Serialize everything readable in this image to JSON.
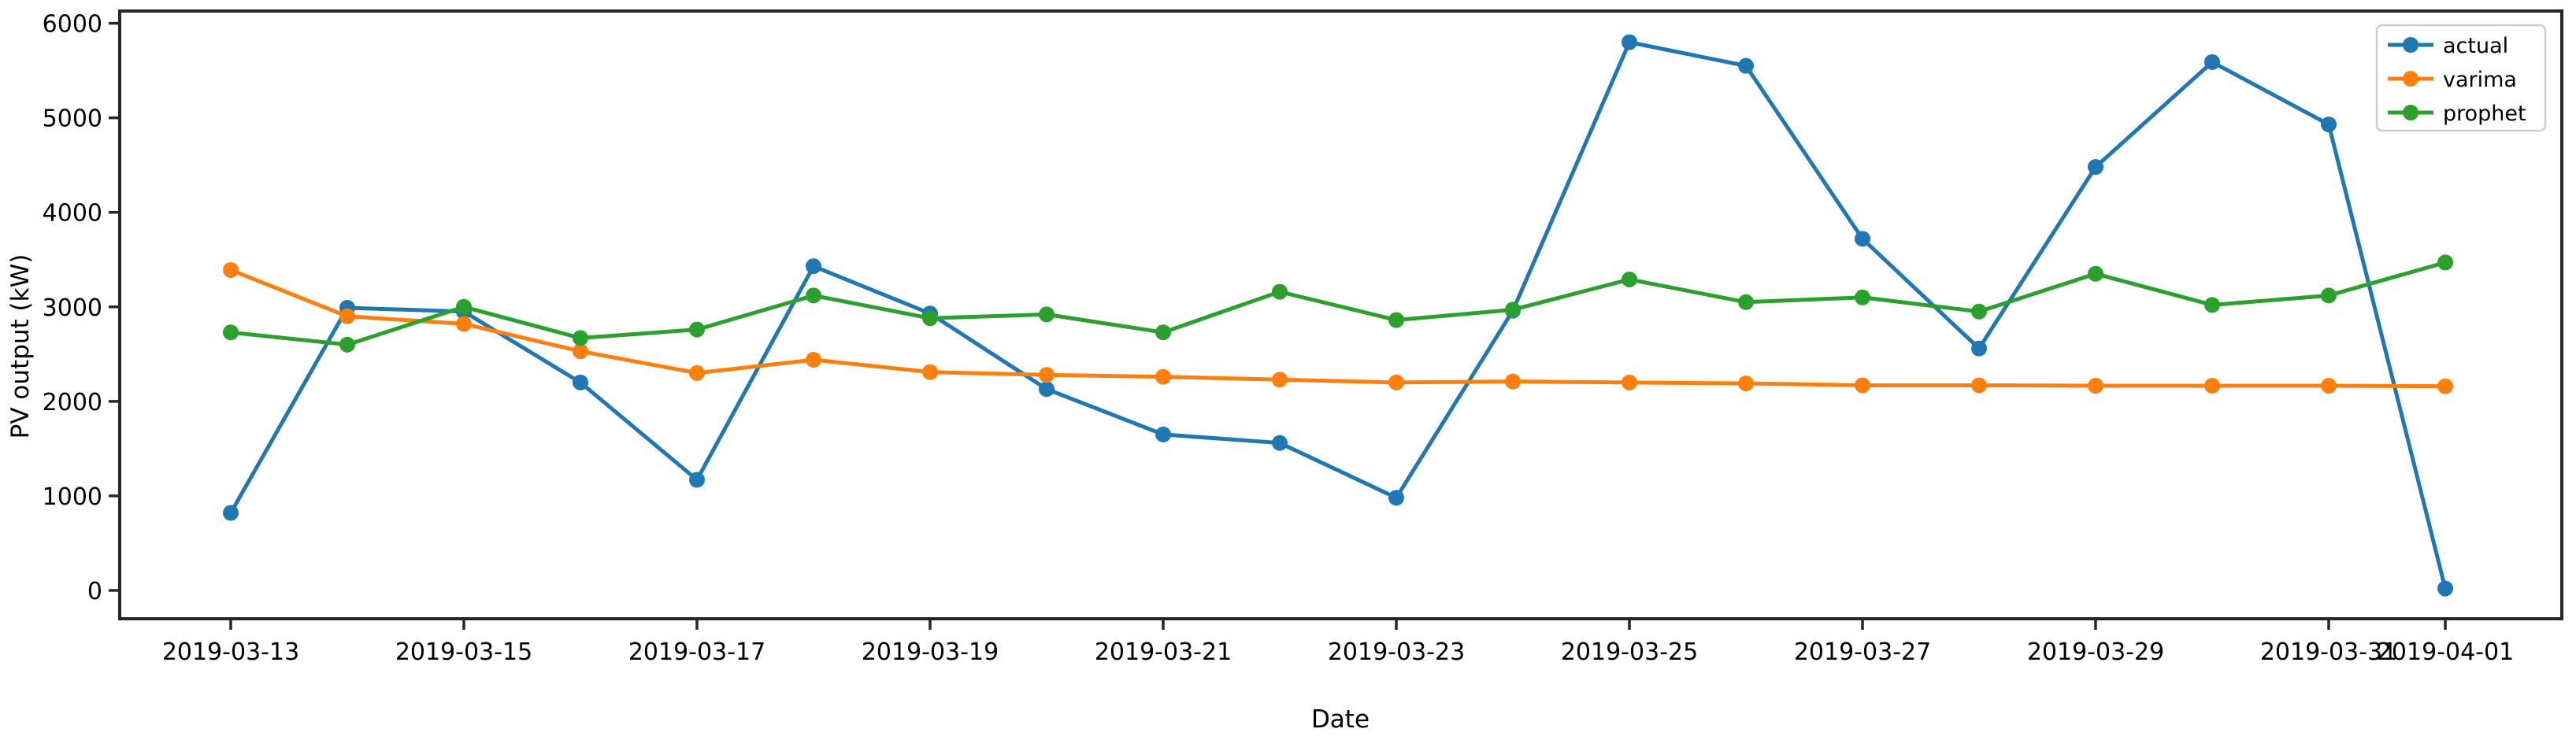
{
  "chart_data": {
    "type": "line",
    "title": "",
    "xlabel": "Date",
    "ylabel": "PV output (kW)",
    "grid": false,
    "legend_position": "upper right",
    "ylim": [
      -300,
      6130
    ],
    "yticks": [
      0,
      1000,
      2000,
      3000,
      4000,
      5000,
      6000
    ],
    "x": [
      "2019-03-13",
      "2019-03-14",
      "2019-03-15",
      "2019-03-16",
      "2019-03-17",
      "2019-03-18",
      "2019-03-19",
      "2019-03-20",
      "2019-03-21",
      "2019-03-22",
      "2019-03-23",
      "2019-03-24",
      "2019-03-25",
      "2019-03-26",
      "2019-03-27",
      "2019-03-28",
      "2019-03-29",
      "2019-03-30",
      "2019-03-31",
      "2019-04-01"
    ],
    "x_tick_indices": [
      0,
      2,
      4,
      6,
      8,
      10,
      12,
      14,
      16,
      18,
      19
    ],
    "x_tick_labels": [
      "2019-03-13",
      "2019-03-15",
      "2019-03-17",
      "2019-03-19",
      "2019-03-21",
      "2019-03-23",
      "2019-03-25",
      "2019-03-27",
      "2019-03-29",
      "2019-03-31",
      "2019-04-01"
    ],
    "series": [
      {
        "name": "actual",
        "color": "#1f77b4",
        "values": [
          820,
          2990,
          2950,
          2200,
          1170,
          3430,
          2930,
          2130,
          1650,
          1560,
          980,
          2960,
          5800,
          5550,
          3720,
          2560,
          4480,
          5590,
          4930,
          20
        ]
      },
      {
        "name": "varima",
        "color": "#ff7f0e",
        "values": [
          3390,
          2900,
          2820,
          2530,
          2300,
          2440,
          2310,
          2280,
          2260,
          2230,
          2200,
          2210,
          2200,
          2190,
          2170,
          2170,
          2165,
          2165,
          2165,
          2160
        ]
      },
      {
        "name": "prophet",
        "color": "#2ca02c",
        "values": [
          2730,
          2600,
          3000,
          2670,
          2760,
          3120,
          2880,
          2920,
          2730,
          3160,
          2860,
          2970,
          3290,
          3050,
          3100,
          2950,
          3350,
          3020,
          3120,
          3470
        ]
      }
    ]
  }
}
